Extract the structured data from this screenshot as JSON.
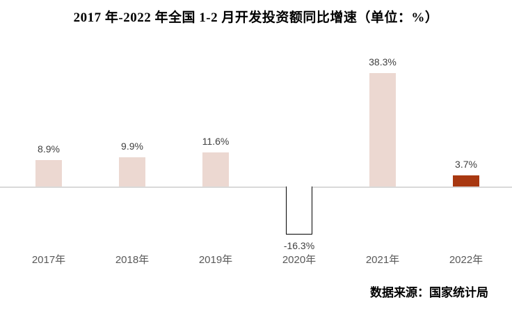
{
  "title": "2017 年-2022 年全国 1-2 月开发投资额同比增速（单位：%）",
  "source": "数据来源：国家统计局",
  "colors": {
    "bar_pink": "#ecd8d1",
    "bar_highlight": "#a83811",
    "bar_outline_fill": "#ffffff",
    "bar_outline_border": "#000000",
    "axis_line": "#d9d9d9",
    "value_label_text": "#404040",
    "category_label_text": "#595959",
    "title_text": "#000000"
  },
  "chart_data": {
    "type": "bar",
    "title": "2017 年-2022 年全国 1-2 月开发投资额同比增速（单位：%）",
    "categories": [
      "2017年",
      "2018年",
      "2019年",
      "2020年",
      "2021年",
      "2022年"
    ],
    "values": [
      8.9,
      9.9,
      11.6,
      -16.3,
      38.3,
      3.7
    ],
    "labels": [
      "8.9%",
      "9.9%",
      "11.6%",
      "-16.3%",
      "38.3%",
      "3.7%"
    ],
    "bar_styles": [
      "pink",
      "pink",
      "pink",
      "outline",
      "pink",
      "highlight"
    ],
    "xlabel": "",
    "ylabel": "",
    "unit": "%",
    "ylim": [
      -20,
      45
    ],
    "grid": false,
    "legend": false,
    "axis_visible": false,
    "data_labels": true
  }
}
